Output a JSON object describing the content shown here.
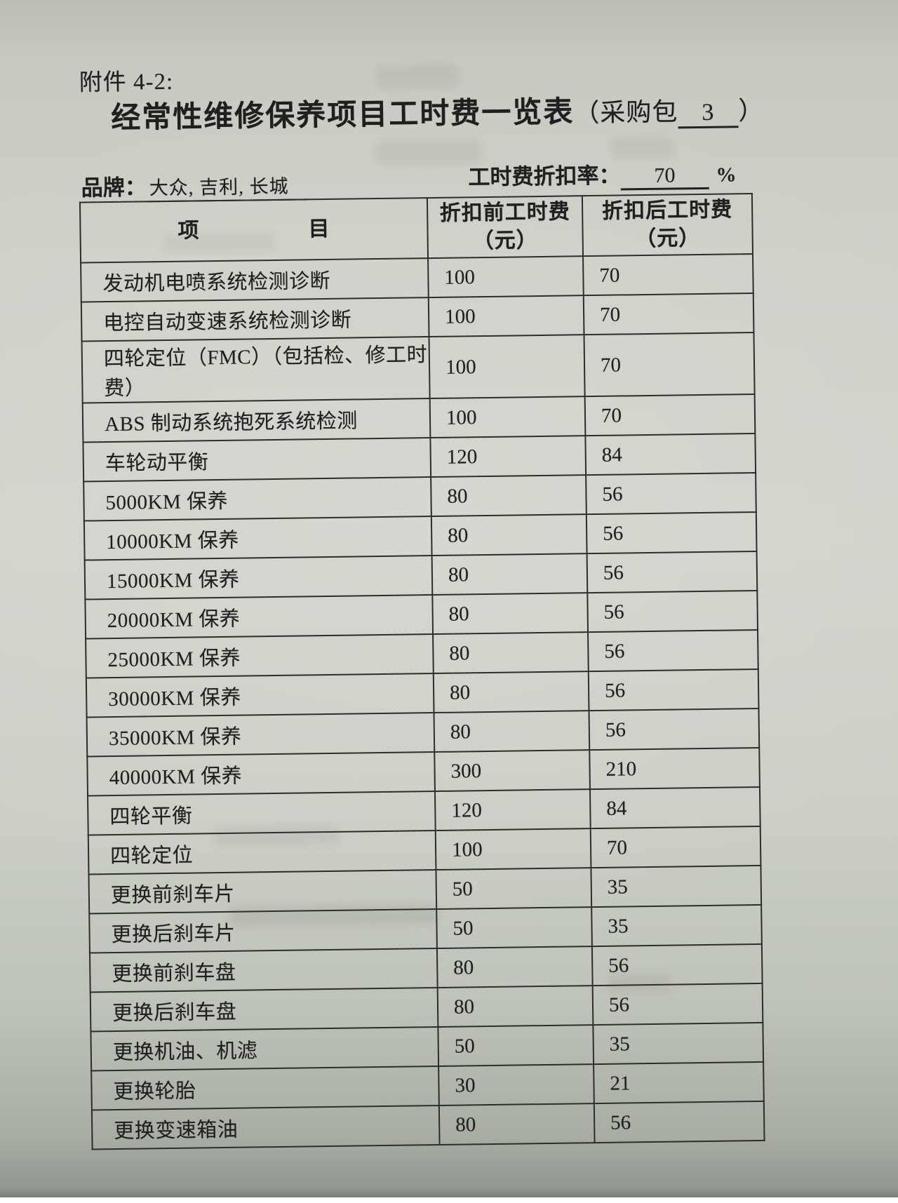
{
  "page": {
    "attachment_label": "附件 4-2:",
    "title": "经常性维修保养项目工时费一览表",
    "package_prefix": "（采购包",
    "package_value": "3",
    "package_suffix": "）",
    "brand_label": "品牌：",
    "brand_value": "大众, 吉利, 长城",
    "discount_label": "工时费折扣率：",
    "discount_value": "70",
    "discount_unit": "%"
  },
  "table": {
    "headers": {
      "item": "项　　　　　目",
      "before": "折扣前工时费\n（元）",
      "after": "折扣后工时费\n（元）"
    },
    "rows": [
      {
        "item": "发动机电喷系统检测诊断",
        "before": "100",
        "after": "70"
      },
      {
        "item": "电控自动变速系统检测诊断",
        "before": "100",
        "after": "70"
      },
      {
        "item": "四轮定位（FMC）（包括检、修工时费）",
        "before": "100",
        "after": "70"
      },
      {
        "item": "ABS 制动系统抱死系统检测",
        "before": "100",
        "after": "70"
      },
      {
        "item": "车轮动平衡",
        "before": "120",
        "after": "84"
      },
      {
        "item": "5000KM 保养",
        "before": "80",
        "after": "56"
      },
      {
        "item": "10000KM 保养",
        "before": "80",
        "after": "56"
      },
      {
        "item": "15000KM 保养",
        "before": "80",
        "after": "56"
      },
      {
        "item": "20000KM 保养",
        "before": "80",
        "after": "56"
      },
      {
        "item": "25000KM 保养",
        "before": "80",
        "after": "56"
      },
      {
        "item": "30000KM 保养",
        "before": "80",
        "after": "56"
      },
      {
        "item": "35000KM 保养",
        "before": "80",
        "after": "56"
      },
      {
        "item": "40000KM 保养",
        "before": "300",
        "after": "210"
      },
      {
        "item": "四轮平衡",
        "before": "120",
        "after": "84"
      },
      {
        "item": "四轮定位",
        "before": "100",
        "after": "70"
      },
      {
        "item": "更换前刹车片",
        "before": "50",
        "after": "35"
      },
      {
        "item": "更换后刹车片",
        "before": "50",
        "after": "35"
      },
      {
        "item": "更换前刹车盘",
        "before": "80",
        "after": "56"
      },
      {
        "item": "更换后刹车盘",
        "before": "80",
        "after": "56"
      },
      {
        "item": "更换机油、机滤",
        "before": "50",
        "after": "35"
      },
      {
        "item": "更换轮胎",
        "before": "30",
        "after": "21"
      },
      {
        "item": "更换变速箱油",
        "before": "80",
        "after": "56"
      }
    ]
  },
  "colors": {
    "paper": "#cdd1c8",
    "ink": "#1f1f1f",
    "table_border": "#2d2d2d"
  }
}
